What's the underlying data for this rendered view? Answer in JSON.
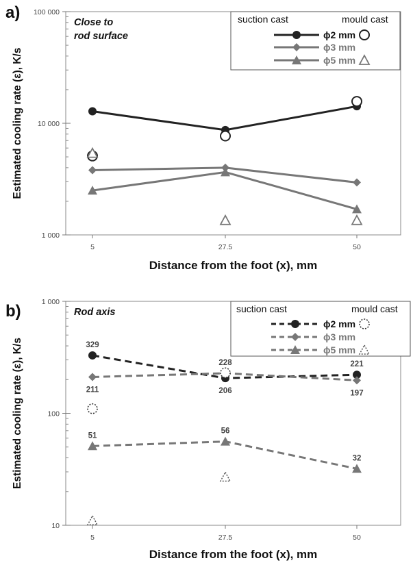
{
  "chart_data": [
    {
      "panel_label": "a)",
      "type": "line",
      "title": "Close to\nrod surface",
      "xlabel": "Distance from the foot (x), mm",
      "ylabel": "Estimated cooling rate (ε), K/s",
      "x": [
        5,
        27.5,
        50
      ],
      "x_tick_labels": [
        "5",
        "27.5",
        "50"
      ],
      "yscale": "log",
      "ylim": [
        1000,
        100000
      ],
      "y_tick_labels": [
        "1 000",
        "10 000",
        "100 000"
      ],
      "legend": {
        "placement": "top-right",
        "left_heading": "suction cast",
        "right_heading": "mould cast"
      },
      "series": [
        {
          "name": "ϕ2 mm",
          "method": "suction cast",
          "marker": "circle",
          "line": "solid",
          "color": "#222222",
          "values": [
            12800,
            8700,
            14200
          ]
        },
        {
          "name": "ϕ3 mm",
          "method": "suction cast",
          "marker": "diamond",
          "line": "solid",
          "color": "#777777",
          "values": [
            3800,
            4000,
            2950
          ]
        },
        {
          "name": "ϕ5 mm",
          "method": "suction cast",
          "marker": "triangle",
          "line": "solid",
          "color": "#777777",
          "values": [
            2500,
            3650,
            1700
          ]
        },
        {
          "name": "ϕ2 mm",
          "method": "mould cast",
          "marker": "open-circle",
          "line": "none",
          "color": "#222222",
          "values": [
            5100,
            7700,
            15700
          ]
        },
        {
          "name": "ϕ5 mm",
          "method": "mould cast",
          "marker": "open-triangle",
          "line": "none",
          "color": "#777777",
          "values": [
            5400,
            1350,
            1350
          ]
        }
      ]
    },
    {
      "panel_label": "b)",
      "type": "line",
      "title": "Rod axis",
      "xlabel": "Distance from the foot (x), mm",
      "ylabel": "Estimated cooling rate (ε), K/s",
      "x": [
        5,
        27.5,
        50
      ],
      "x_tick_labels": [
        "5",
        "27.5",
        "50"
      ],
      "yscale": "log",
      "ylim": [
        10,
        1000
      ],
      "y_tick_labels": [
        "10",
        "100",
        "1 000"
      ],
      "legend": {
        "placement": "top-right",
        "left_heading": "suction cast",
        "right_heading": "mould cast"
      },
      "series": [
        {
          "name": "ϕ2 mm",
          "method": "suction cast",
          "marker": "circle",
          "line": "dashed",
          "color": "#222222",
          "values": [
            329,
            206,
            221
          ],
          "data_labels": [
            "329",
            "206",
            "221"
          ],
          "label_pos": [
            "above",
            "below",
            "above"
          ]
        },
        {
          "name": "ϕ3 mm",
          "method": "suction cast",
          "marker": "diamond",
          "line": "dashed",
          "color": "#777777",
          "values": [
            211,
            228,
            197
          ],
          "data_labels": [
            "211",
            "228",
            "197"
          ],
          "label_pos": [
            "below",
            "above",
            "below"
          ]
        },
        {
          "name": "ϕ5 mm",
          "method": "suction cast",
          "marker": "triangle",
          "line": "dashed",
          "color": "#777777",
          "values": [
            51,
            56,
            32
          ],
          "data_labels": [
            "51",
            "56",
            "32"
          ],
          "label_pos": [
            "above",
            "above",
            "above"
          ]
        },
        {
          "name": "ϕ2 mm",
          "method": "mould cast",
          "marker": "dotted-circle",
          "line": "none",
          "color": "#333333",
          "values": [
            110,
            230,
            null
          ]
        },
        {
          "name": "ϕ5 mm",
          "method": "mould cast",
          "marker": "dotted-triangle",
          "line": "none",
          "color": "#555555",
          "values": [
            11,
            27,
            null
          ]
        }
      ]
    }
  ]
}
